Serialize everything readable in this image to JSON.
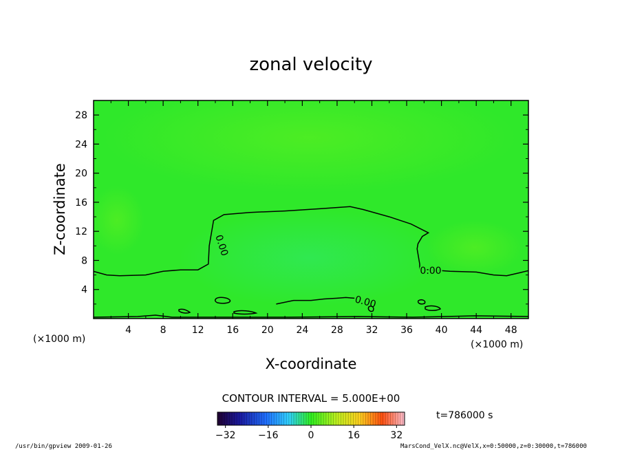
{
  "chart_data": {
    "type": "heatmap",
    "title": "zonal velocity",
    "xlabel": "X-coordinate",
    "ylabel": "Z-coordinate",
    "x_unit": "(×1000 m)",
    "y_unit": "(×1000 m)",
    "xlim": [
      0,
      50
    ],
    "ylim": [
      0,
      30
    ],
    "xticks": [
      4,
      8,
      12,
      16,
      20,
      24,
      28,
      32,
      36,
      40,
      44,
      48
    ],
    "yticks": [
      4,
      8,
      12,
      16,
      20,
      24,
      28
    ],
    "contour_interval_text": "CONTOUR INTERVAL = 5.000E+00",
    "contour_label": "0.00",
    "main_contour": {
      "level": 0.0,
      "x": [
        0,
        1.5,
        3,
        6,
        8,
        10,
        12,
        13.2,
        13.3,
        13.8,
        15,
        18,
        22,
        26,
        29.5,
        31,
        34,
        36.5,
        38.5,
        37.8,
        37.3,
        37.2,
        37.5,
        37.5,
        41,
        44,
        46,
        47.5,
        49,
        50
      ],
      "y": [
        6.5,
        6.0,
        5.9,
        6.0,
        6.5,
        6.7,
        6.7,
        7.5,
        10,
        13.5,
        14.3,
        14.6,
        14.8,
        15.1,
        15.4,
        15.0,
        14.0,
        13.0,
        11.8,
        11.3,
        10.3,
        9.6,
        7.5,
        6.8,
        6.5,
        6.4,
        6.0,
        5.9,
        6.3,
        6.6
      ]
    },
    "lower_contour": {
      "x": [
        21,
        23,
        25,
        26.5,
        28,
        29,
        30
      ],
      "y": [
        2.0,
        2.5,
        2.5,
        2.7,
        2.8,
        2.9,
        2.8
      ]
    },
    "colorbar": {
      "ticks": [
        -32,
        -16,
        0,
        16,
        32
      ],
      "range": [
        -35,
        35
      ]
    },
    "time_label": "t=786000 s",
    "footer_left": "/usr/bin/gpview  2009-01-26",
    "footer_right": "MarsCond_VelX.nc@VelX,x=0:50000,z=0:30000,t=786000"
  }
}
